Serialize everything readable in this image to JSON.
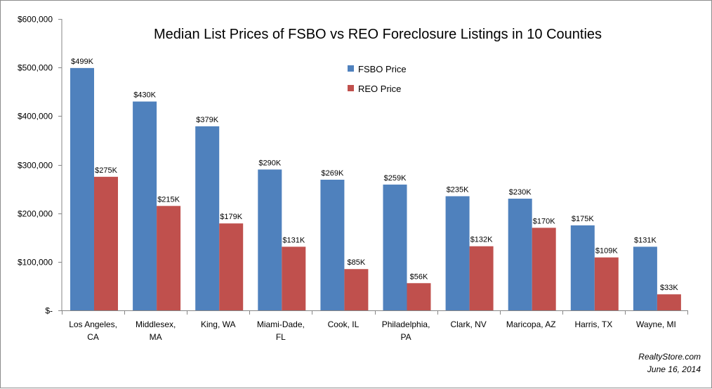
{
  "chart_data": {
    "type": "bar",
    "title": "Median List Prices of FSBO vs REO Foreclosure Listings in 10 Counties",
    "xlabel": "",
    "ylabel": "",
    "ylim": [
      0,
      600000
    ],
    "yticks": [
      0,
      100000,
      200000,
      300000,
      400000,
      500000,
      600000
    ],
    "ytick_labels": [
      "$-",
      "$100,000",
      "$200,000",
      "$300,000",
      "$400,000",
      "$500,000",
      "$600,000"
    ],
    "grid": false,
    "legend_position": "top-center",
    "categories": [
      [
        "Los Angeles,",
        "CA"
      ],
      [
        "Middlesex,",
        "MA"
      ],
      [
        "King, WA"
      ],
      [
        "Miami-Dade,",
        "FL"
      ],
      [
        "Cook, IL"
      ],
      [
        "Philadelphia,",
        "PA"
      ],
      [
        "Clark, NV"
      ],
      [
        "Maricopa, AZ"
      ],
      [
        "Harris, TX"
      ],
      [
        "Wayne, MI"
      ]
    ],
    "series": [
      {
        "name": "FSBO Price",
        "color": "#4f81bd",
        "values": [
          499000,
          430000,
          379000,
          290000,
          269000,
          259000,
          235000,
          230000,
          175000,
          131000
        ],
        "labels": [
          "$499K",
          "$430K",
          "$379K",
          "$290K",
          "$269K",
          "$259K",
          "$235K",
          "$230K",
          "$175K",
          "$131K"
        ]
      },
      {
        "name": "REO Price",
        "color": "#c0504d",
        "values": [
          275000,
          215000,
          179000,
          131000,
          85000,
          56000,
          132000,
          170000,
          109000,
          33000
        ],
        "labels": [
          "$275K",
          "$215K",
          "$179K",
          "$131K",
          "$85K",
          "$56K",
          "$132K",
          "$170K",
          "$109K",
          "$33K"
        ]
      }
    ]
  },
  "credit": {
    "site": "RealtyStore.com",
    "date": "June 16, 2014"
  }
}
